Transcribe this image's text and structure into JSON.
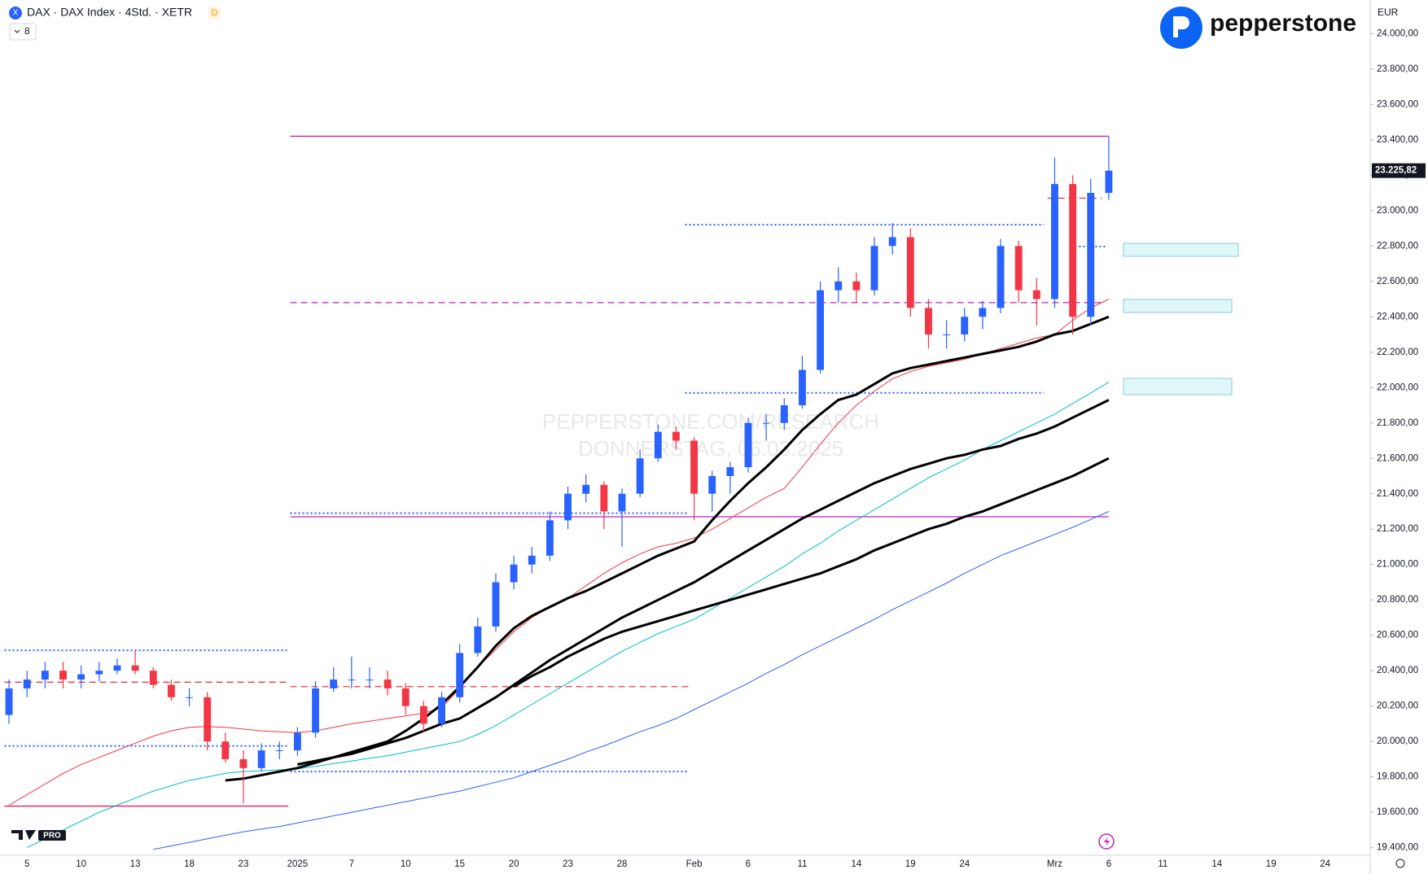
{
  "header": {
    "symbol": "DAX · DAX Index · 4Std. · XETR",
    "badge": "D",
    "indicator_count": "8",
    "currency": "EUR",
    "brand": "pepperstone",
    "platform_badge": "PRO"
  },
  "chart_data": {
    "type": "candlestick",
    "watermark": [
      "PEPPERSTONE.COM/RESEARCH",
      "DONNERSTAG, 06.03.2025"
    ],
    "categories": [
      null,
      "5",
      null,
      null,
      "10",
      null,
      null,
      "13",
      null,
      null,
      "18",
      null,
      null,
      "23",
      null,
      null,
      "2025",
      null,
      null,
      "7",
      null,
      null,
      "10",
      null,
      null,
      "15",
      null,
      null,
      "20",
      null,
      null,
      "23",
      null,
      null,
      "28",
      null,
      null,
      null,
      "Feb",
      null,
      null,
      "6",
      null,
      null,
      "11",
      null,
      null,
      "14",
      null,
      null,
      "19",
      null,
      null,
      "24",
      null,
      null,
      null,
      null,
      "Mrz",
      null,
      null,
      "6",
      null,
      null,
      "11",
      null,
      null,
      "14",
      null,
      null,
      "19",
      null,
      null,
      "24",
      null,
      null
    ],
    "open": [
      20150,
      20300,
      20350,
      20400,
      20350,
      20380,
      20400,
      20430,
      20400,
      20320,
      20250,
      20250,
      20000,
      19900,
      19850,
      19950,
      19950,
      20050,
      20300,
      20350,
      20350,
      20350,
      20300,
      20200,
      20100,
      20250,
      20500,
      20650,
      20900,
      21000,
      21050,
      21250,
      21400,
      21450,
      21300,
      21400,
      21600,
      21750,
      21700,
      21400,
      21500,
      21550,
      21800,
      21800,
      21900,
      22100,
      22550,
      22600,
      22550,
      22800,
      22850,
      22450,
      22300,
      22300,
      22400,
      22450,
      22800,
      22550,
      22500,
      23150,
      22400,
      23100,
      null,
      null,
      null,
      null,
      null,
      null,
      null,
      null,
      null,
      null,
      null,
      null,
      null,
      null
    ],
    "high": [
      20350,
      20400,
      20450,
      20450,
      20430,
      20450,
      20470,
      20520,
      20420,
      20350,
      20300,
      20280,
      20050,
      19950,
      19990,
      20000,
      20080,
      20340,
      20420,
      20480,
      20420,
      20400,
      20330,
      20230,
      20280,
      20550,
      20700,
      20950,
      21050,
      21100,
      21300,
      21440,
      21510,
      21470,
      21430,
      21650,
      21790,
      21780,
      21720,
      21530,
      21580,
      21830,
      21850,
      21940,
      22180,
      22600,
      22680,
      22650,
      22850,
      22930,
      22900,
      22500,
      22380,
      22450,
      22490,
      22840,
      22830,
      22620,
      23300,
      23200,
      23180,
      23420,
      null,
      null,
      null,
      null,
      null,
      null,
      null,
      null,
      null,
      null,
      null,
      null,
      null,
      null
    ],
    "low": [
      20100,
      20250,
      20300,
      20300,
      20300,
      20340,
      20380,
      20380,
      20300,
      20230,
      20200,
      19950,
      19880,
      19650,
      19830,
      19900,
      19920,
      20020,
      20280,
      20300,
      20300,
      20260,
      20150,
      20050,
      20080,
      20220,
      20480,
      20620,
      20860,
      20950,
      21020,
      21200,
      21350,
      21200,
      21100,
      21380,
      21580,
      21650,
      21250,
      21300,
      21400,
      21520,
      21700,
      21760,
      21880,
      22080,
      22480,
      22480,
      22520,
      22750,
      22400,
      22220,
      22220,
      22260,
      22330,
      22420,
      22480,
      22350,
      22450,
      22300,
      22350,
      23060,
      null,
      null,
      null,
      null,
      null,
      null,
      null,
      null,
      null,
      null,
      null,
      null,
      null,
      null
    ],
    "close": [
      20300,
      20350,
      20400,
      20350,
      20380,
      20400,
      20430,
      20400,
      20320,
      20250,
      20250,
      20000,
      19900,
      19850,
      19950,
      19950,
      20050,
      20300,
      20350,
      20350,
      20350,
      20300,
      20200,
      20100,
      20250,
      20500,
      20650,
      20900,
      21000,
      21050,
      21250,
      21400,
      21450,
      21300,
      21400,
      21600,
      21750,
      21700,
      21400,
      21500,
      21550,
      21800,
      21800,
      21900,
      22100,
      22550,
      22600,
      22550,
      22800,
      22850,
      22450,
      22300,
      22300,
      22400,
      22450,
      22800,
      22550,
      22500,
      23150,
      22400,
      23100,
      23225.82,
      null,
      null,
      null,
      null,
      null,
      null,
      null,
      null,
      null,
      null,
      null,
      null,
      null,
      null
    ],
    "up_color": "#2962ff",
    "down_color": "#f23645",
    "overlays": [
      {
        "color": "#2962ff",
        "width": 1,
        "values": [
          null,
          null,
          null,
          null,
          null,
          null,
          null,
          null,
          19390,
          19410,
          19430,
          19450,
          19470,
          19490,
          19505,
          19520,
          19540,
          19560,
          19580,
          19600,
          19620,
          19640,
          19660,
          19680,
          19700,
          19720,
          19745,
          19770,
          19795,
          19830,
          19865,
          19900,
          19940,
          19975,
          20015,
          20055,
          20090,
          20130,
          20180,
          20230,
          20280,
          20330,
          20385,
          20435,
          20490,
          20540,
          20590,
          20640,
          20690,
          20745,
          20795,
          20845,
          20895,
          20950,
          21000,
          21050,
          21090,
          21130,
          21170,
          21210,
          21255,
          21300,
          null,
          null,
          null,
          null,
          null,
          null,
          null,
          null,
          null,
          null,
          null,
          null,
          null,
          null
        ]
      },
      {
        "color": "#00bcd4",
        "width": 1,
        "values": [
          null,
          19400,
          19450,
          19500,
          19550,
          19600,
          19640,
          19680,
          19720,
          19750,
          19780,
          19800,
          19820,
          19830,
          19835,
          19840,
          19845,
          19860,
          19875,
          19890,
          19905,
          19920,
          19940,
          19960,
          19980,
          20000,
          20040,
          20090,
          20150,
          20210,
          20270,
          20330,
          20390,
          20450,
          20510,
          20560,
          20610,
          20650,
          20690,
          20750,
          20810,
          20870,
          20930,
          20990,
          21060,
          21120,
          21190,
          21250,
          21310,
          21370,
          21430,
          21490,
          21540,
          21590,
          21650,
          21700,
          21750,
          21800,
          21850,
          21910,
          21970,
          22030,
          null,
          null,
          null,
          null,
          null,
          null,
          null,
          null,
          null,
          null,
          null,
          null,
          null,
          null
        ]
      },
      {
        "color": "#f23645",
        "width": 1,
        "values": [
          19640,
          19700,
          19760,
          19820,
          19870,
          19910,
          19950,
          19990,
          20030,
          20060,
          20080,
          20085,
          20080,
          20070,
          20060,
          20055,
          20050,
          20060,
          20080,
          20100,
          20115,
          20130,
          20145,
          20160,
          20190,
          20300,
          20420,
          20520,
          20620,
          20700,
          20760,
          20810,
          20880,
          20950,
          21010,
          21060,
          21100,
          21120,
          21150,
          21200,
          21260,
          21320,
          21380,
          21430,
          21550,
          21680,
          21800,
          21900,
          21980,
          22050,
          22090,
          22120,
          22140,
          22160,
          22190,
          22220,
          22250,
          22280,
          22300,
          22380,
          22450,
          22500,
          null,
          null,
          null,
          null,
          null,
          null,
          null,
          null,
          null,
          null,
          null,
          null,
          null,
          null
        ]
      },
      {
        "color": "#000000",
        "width": 3,
        "values": [
          null,
          null,
          null,
          null,
          null,
          null,
          null,
          null,
          null,
          null,
          null,
          null,
          19780,
          19790,
          19810,
          19830,
          19850,
          19880,
          19910,
          19940,
          19970,
          20000,
          20060,
          20130,
          20210,
          20310,
          20420,
          20540,
          20640,
          20710,
          20760,
          20810,
          20850,
          20900,
          20950,
          21000,
          21050,
          21090,
          21130,
          21250,
          21360,
          21460,
          21550,
          21650,
          21760,
          21850,
          21930,
          21960,
          22020,
          22080,
          22110,
          22130,
          22150,
          22170,
          22190,
          22210,
          22230,
          22260,
          22300,
          22320,
          22360,
          22400,
          null,
          null,
          null,
          null,
          null,
          null,
          null,
          null,
          null,
          null,
          null,
          null,
          null,
          null
        ]
      },
      {
        "color": "#000000",
        "width": 3,
        "values": [
          null,
          null,
          null,
          null,
          null,
          null,
          null,
          null,
          null,
          null,
          null,
          null,
          null,
          null,
          null,
          null,
          19870,
          19890,
          19910,
          19930,
          19960,
          19990,
          20020,
          20060,
          20100,
          20130,
          20190,
          20250,
          20320,
          20390,
          20460,
          20520,
          20580,
          20640,
          20700,
          20750,
          20800,
          20850,
          20900,
          20960,
          21020,
          21080,
          21140,
          21200,
          21260,
          21310,
          21360,
          21410,
          21460,
          21500,
          21540,
          21570,
          21600,
          21620,
          21650,
          21670,
          21710,
          21740,
          21780,
          21830,
          21880,
          21930,
          null,
          null,
          null,
          null,
          null,
          null,
          null,
          null,
          null,
          null,
          null,
          null,
          null,
          null
        ]
      },
      {
        "color": "#000000",
        "width": 3,
        "values": [
          null,
          null,
          null,
          null,
          null,
          null,
          null,
          null,
          null,
          null,
          null,
          null,
          null,
          null,
          null,
          null,
          null,
          null,
          null,
          null,
          null,
          null,
          null,
          null,
          null,
          null,
          null,
          null,
          20310,
          20370,
          20420,
          20480,
          20530,
          20580,
          20620,
          20650,
          20680,
          20710,
          20740,
          20770,
          20800,
          20830,
          20860,
          20890,
          20920,
          20950,
          20990,
          21030,
          21080,
          21120,
          21160,
          21200,
          21230,
          21270,
          21300,
          21340,
          21380,
          21420,
          21460,
          21500,
          21550,
          21600,
          null,
          null,
          null,
          null,
          null,
          null,
          null,
          null,
          null,
          null,
          null,
          null,
          null,
          null
        ]
      }
    ],
    "levels": [
      {
        "value": 23420,
        "color": "#c020c0",
        "style": "solid",
        "start": 15.6,
        "end": 61
      },
      {
        "value": 22480,
        "color": "#c020c0",
        "style": "dashed",
        "start": 15.6,
        "end": 60.6
      },
      {
        "value": 21270,
        "color": "#c020c0",
        "style": "solid",
        "start": 15.6,
        "end": 61
      },
      {
        "value": 19635,
        "color": "#e91e63",
        "style": "solid",
        "start": -0.25,
        "end": 15.5
      },
      {
        "value": 22920,
        "color": "#2962ff",
        "style": "dotted",
        "start": 37.5,
        "end": 57.4
      },
      {
        "value": 21970,
        "color": "#2962ff",
        "style": "dotted",
        "start": 37.5,
        "end": 57.4
      },
      {
        "value": 21290,
        "color": "#2962ff",
        "style": "dotted",
        "start": 15.6,
        "end": 37.7
      },
      {
        "value": 20515,
        "color": "#2962ff",
        "style": "dotted",
        "start": -0.25,
        "end": 15.5
      },
      {
        "value": 19975,
        "color": "#2962ff",
        "style": "dotted",
        "start": -0.25,
        "end": 15.5
      },
      {
        "value": 19830,
        "color": "#2962ff",
        "style": "dotted",
        "start": 15.6,
        "end": 37.7
      },
      {
        "value": 22797,
        "color": "#2962ff",
        "style": "dotted",
        "start": 58.9,
        "end": 60.9
      },
      {
        "value": 20335,
        "color": "#f23645",
        "style": "dashed",
        "start": -0.25,
        "end": 15.5
      },
      {
        "value": 20310,
        "color": "#f23645",
        "style": "dashed",
        "start": 15.6,
        "end": 37.7
      },
      {
        "value": 23070,
        "color": "#f23645",
        "style": "dashed",
        "start": 57.6,
        "end": 60.6
      }
    ],
    "last_price": {
      "value": 23225.82,
      "label": "23.225,82"
    },
    "ylim": [
      19357,
      24190
    ],
    "yticks": [
      {
        "value": 19400,
        "label": "19.400,00"
      },
      {
        "value": 19600,
        "label": "19.600,00"
      },
      {
        "value": 19800,
        "label": "19.800,00"
      },
      {
        "value": 20000,
        "label": "20.000,00"
      },
      {
        "value": 20200,
        "label": "20.200,00"
      },
      {
        "value": 20400,
        "label": "20.400,00"
      },
      {
        "value": 20600,
        "label": "20.600,00"
      },
      {
        "value": 20800,
        "label": "20.800,00"
      },
      {
        "value": 21000,
        "label": "21.000,00"
      },
      {
        "value": 21200,
        "label": "21.200,00"
      },
      {
        "value": 21400,
        "label": "21.400,00"
      },
      {
        "value": 21600,
        "label": "21.600,00"
      },
      {
        "value": 21800,
        "label": "21.800,00"
      },
      {
        "value": 22000,
        "label": "22.000,00"
      },
      {
        "value": 22200,
        "label": "22.200,00"
      },
      {
        "value": 22400,
        "label": "22.400,00"
      },
      {
        "value": 22600,
        "label": "22.600,00"
      },
      {
        "value": 22800,
        "label": "22.800,00"
      },
      {
        "value": 23000,
        "label": "23.000,00"
      },
      {
        "value": 23200,
        "label": "23.200,00"
      },
      {
        "value": 23400,
        "label": "23.400,00"
      },
      {
        "value": 23600,
        "label": "23.600,00"
      },
      {
        "value": 23800,
        "label": "23.800,00"
      },
      {
        "value": 24000,
        "label": "24.000,00"
      }
    ]
  }
}
